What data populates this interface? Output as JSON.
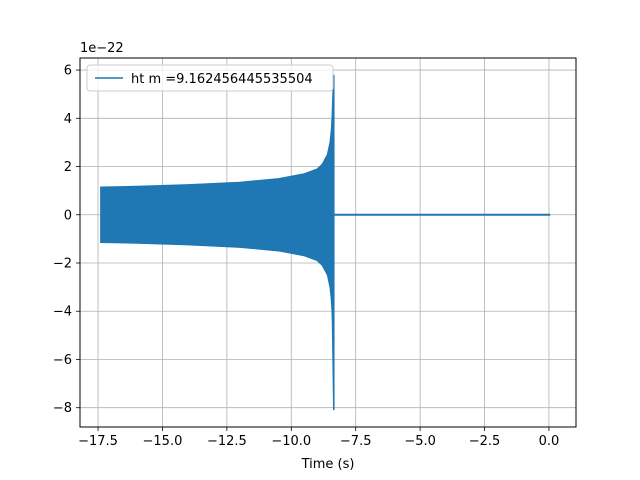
{
  "chart_data": {
    "type": "line",
    "title": "",
    "xlabel": "Time (s)",
    "ylabel": "",
    "y_offset_label": "1e−22",
    "xlim": [
      -18.2,
      1.05
    ],
    "ylim": [
      -8.8,
      6.5
    ],
    "xticks": [
      -17.5,
      -15.0,
      -12.5,
      -10.0,
      -7.5,
      -5.0,
      -2.5,
      0.0
    ],
    "xtick_labels": [
      "−17.5",
      "−15.0",
      "−12.5",
      "−10.0",
      "−7.5",
      "−5.0",
      "−2.5",
      "0.0"
    ],
    "yticks": [
      -8,
      -6,
      -4,
      -2,
      0,
      2,
      4,
      6
    ],
    "ytick_labels": [
      "−8",
      "−6",
      "−4",
      "−2",
      "0",
      "2",
      "4",
      "6"
    ],
    "grid": true,
    "legend_position": "upper-left",
    "series": [
      {
        "name": "ht m =9.162456445535504",
        "color": "#1f77b4",
        "envelope": {
          "x": [
            -17.4,
            -16.0,
            -14.0,
            -12.0,
            -10.5,
            -9.5,
            -9.0,
            -8.8,
            -8.6,
            -8.5,
            -8.45,
            -8.4
          ],
          "upper": [
            1.15,
            1.18,
            1.25,
            1.35,
            1.5,
            1.7,
            1.9,
            2.1,
            2.5,
            3.0,
            3.5,
            4.4
          ],
          "lower": [
            -1.15,
            -1.18,
            -1.25,
            -1.35,
            -1.5,
            -1.7,
            -1.9,
            -2.1,
            -2.5,
            -3.0,
            -3.5,
            -4.4
          ]
        },
        "merger": {
          "x": -8.35,
          "peak_max": 5.8,
          "peak_min": -8.1
        },
        "ringdown_flat": {
          "x_start": -8.35,
          "x_end": 0.05,
          "y": 0.0
        }
      }
    ]
  }
}
